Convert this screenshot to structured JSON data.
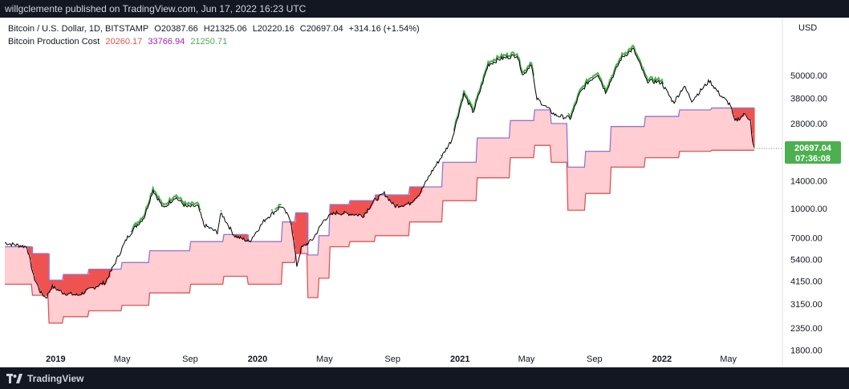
{
  "publish_note": "willgclemente published on TradingView.com, Jun 17, 2022 16:23 UTC",
  "brand": {
    "name": "TradingView",
    "icon": "tradingview-logo-icon"
  },
  "legend": {
    "symbol": "Bitcoin / U.S. Dollar, 1D, BITSTAMP",
    "open": "O20387.66",
    "high": "H21325.06",
    "low": "L20220.16",
    "close": "C20697.04",
    "change": "+314.16 (+1.54%)",
    "indicator_name": "Bitcoin Production Cost",
    "indicator_v1": "20260.17",
    "indicator_v2": "33766.94",
    "indicator_v3": "21250.71"
  },
  "price_badge": {
    "value": "20697.04",
    "countdown": "07:36:08",
    "color": "#4caf50"
  },
  "colors": {
    "price": "#000000",
    "price_above": "#4caf50",
    "band_fill": "#ffcdd2",
    "band_lower": "#e05555",
    "band_upper": "#9575cd",
    "deficit_fill": "#ef5350"
  },
  "chart_data": {
    "type": "line",
    "y_scale": "log",
    "y_unit": "USD",
    "ylim": [
      1550,
      97000
    ],
    "y_ticks": [
      "50000.00",
      "38000.00",
      "28000.00",
      "20000.00",
      "14000.00",
      "10000.00",
      "7000.00",
      "5400.00",
      "4150.00",
      "3150.00",
      "2350.00",
      "1800.00"
    ],
    "x_ticks": [
      {
        "label": "2019",
        "date": "2019-01-01",
        "bold": true
      },
      {
        "label": "May",
        "date": "2019-05-01",
        "bold": false
      },
      {
        "label": "Sep",
        "date": "2019-09-01",
        "bold": false
      },
      {
        "label": "2020",
        "date": "2020-01-01",
        "bold": true
      },
      {
        "label": "May",
        "date": "2020-05-01",
        "bold": false
      },
      {
        "label": "Sep",
        "date": "2020-09-01",
        "bold": false
      },
      {
        "label": "2021",
        "date": "2021-01-01",
        "bold": true
      },
      {
        "label": "May",
        "date": "2021-05-01",
        "bold": false
      },
      {
        "label": "Sep",
        "date": "2021-09-01",
        "bold": false
      },
      {
        "label": "2022",
        "date": "2022-01-01",
        "bold": true
      },
      {
        "label": "May",
        "date": "2022-05-01",
        "bold": false
      }
    ],
    "x_range": [
      "2018-10-01",
      "2022-06-17"
    ],
    "series": [
      {
        "role": "price",
        "x": [
          "2018-10-01",
          "2018-10-20",
          "2018-11-10",
          "2018-11-22",
          "2018-12-05",
          "2018-12-15",
          "2018-12-25",
          "2019-01-15",
          "2019-02-10",
          "2019-03-15",
          "2019-04-01",
          "2019-04-20",
          "2019-05-10",
          "2019-05-25",
          "2019-06-10",
          "2019-06-26",
          "2019-07-15",
          "2019-08-05",
          "2019-08-25",
          "2019-09-15",
          "2019-09-26",
          "2019-10-20",
          "2019-10-27",
          "2019-11-20",
          "2019-12-17",
          "2020-01-15",
          "2020-02-13",
          "2020-03-01",
          "2020-03-12",
          "2020-03-20",
          "2020-04-10",
          "2020-05-01",
          "2020-05-20",
          "2020-06-15",
          "2020-07-10",
          "2020-07-30",
          "2020-08-17",
          "2020-09-05",
          "2020-10-01",
          "2020-10-20",
          "2020-11-10",
          "2020-11-30",
          "2020-12-17",
          "2021-01-08",
          "2021-01-25",
          "2021-02-10",
          "2021-02-21",
          "2021-03-13",
          "2021-04-14",
          "2021-04-25",
          "2021-05-10",
          "2021-05-19",
          "2021-06-22",
          "2021-07-20",
          "2021-08-05",
          "2021-08-20",
          "2021-09-07",
          "2021-09-21",
          "2021-10-20",
          "2021-11-10",
          "2021-11-26",
          "2021-12-04",
          "2021-12-31",
          "2022-01-22",
          "2022-02-10",
          "2022-02-24",
          "2022-03-28",
          "2022-04-15",
          "2022-05-05",
          "2022-05-12",
          "2022-06-01",
          "2022-06-10",
          "2022-06-13",
          "2022-06-17"
        ],
        "values": [
          6600,
          6450,
          6300,
          4400,
          3600,
          3400,
          3900,
          3600,
          3500,
          3900,
          4100,
          5300,
          7000,
          8000,
          9000,
          12500,
          10000,
          11500,
          10200,
          10300,
          8200,
          7500,
          9500,
          7200,
          6700,
          8800,
          10300,
          8700,
          5000,
          6200,
          6900,
          8800,
          9500,
          9400,
          9200,
          11000,
          12000,
          10300,
          10600,
          12000,
          15500,
          19000,
          23000,
          40000,
          32000,
          45000,
          57000,
          61000,
          64000,
          50000,
          58000,
          38000,
          31000,
          29800,
          40000,
          46000,
          51000,
          41000,
          62000,
          69000,
          54000,
          47000,
          46000,
          36000,
          44000,
          37000,
          47000,
          40000,
          35000,
          28700,
          31500,
          29000,
          22500,
          20697
        ]
      },
      {
        "role": "production_cost_lower",
        "x": [
          "2018-10-01",
          "2018-11-20",
          "2018-12-20",
          "2019-01-15",
          "2019-03-01",
          "2019-05-01",
          "2019-06-20",
          "2019-09-01",
          "2019-11-01",
          "2019-12-15",
          "2020-02-15",
          "2020-03-10",
          "2020-03-31",
          "2020-04-20",
          "2020-05-11",
          "2020-06-15",
          "2020-08-01",
          "2020-10-01",
          "2020-12-01",
          "2021-02-01",
          "2021-04-01",
          "2021-05-15",
          "2021-06-15",
          "2021-07-15",
          "2021-08-15",
          "2021-10-01",
          "2021-12-01",
          "2022-02-01",
          "2022-04-01",
          "2022-06-17"
        ],
        "values": [
          4000,
          3500,
          2500,
          2700,
          2900,
          3100,
          3600,
          4000,
          4400,
          4000,
          5200,
          5800,
          3400,
          4300,
          6300,
          6700,
          7200,
          8500,
          11000,
          14500,
          18500,
          21500,
          17500,
          9800,
          12000,
          16500,
          18500,
          20000,
          20260,
          20260
        ]
      },
      {
        "role": "production_cost_upper",
        "x": [
          "2018-10-01",
          "2018-11-20",
          "2018-12-20",
          "2019-01-15",
          "2019-03-01",
          "2019-05-01",
          "2019-06-20",
          "2019-09-01",
          "2019-11-01",
          "2019-12-15",
          "2020-02-15",
          "2020-03-10",
          "2020-03-31",
          "2020-04-20",
          "2020-05-11",
          "2020-06-15",
          "2020-08-01",
          "2020-10-01",
          "2020-12-01",
          "2021-02-01",
          "2021-04-01",
          "2021-05-15",
          "2021-06-15",
          "2021-07-15",
          "2021-08-15",
          "2021-10-01",
          "2021-12-01",
          "2022-02-01",
          "2022-04-01",
          "2022-06-17"
        ],
        "values": [
          6300,
          5800,
          4200,
          4500,
          4800,
          5200,
          6000,
          6700,
          7300,
          6700,
          8500,
          9500,
          5700,
          7200,
          10500,
          11000,
          11800,
          13000,
          17500,
          23500,
          29000,
          33000,
          28000,
          16500,
          20000,
          27000,
          30500,
          33000,
          33766,
          33766
        ]
      }
    ]
  }
}
